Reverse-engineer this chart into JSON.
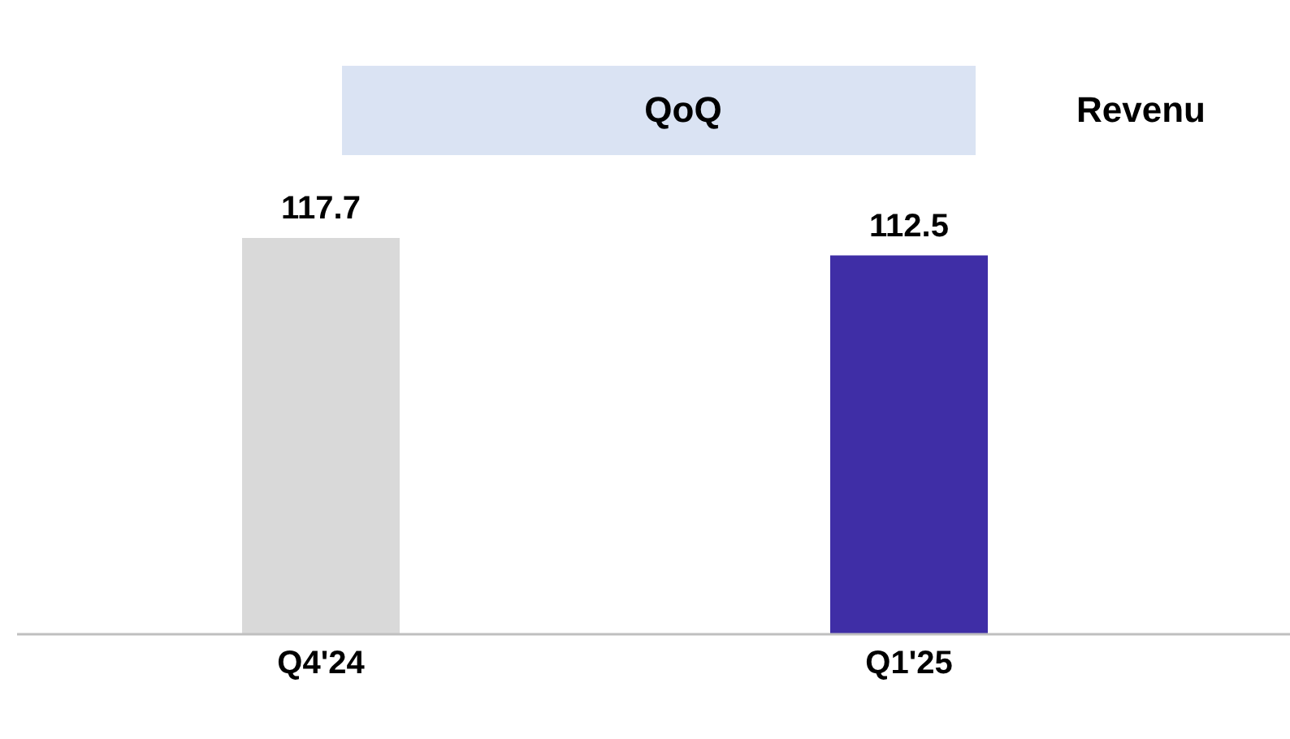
{
  "chart_data": {
    "type": "bar",
    "title": "QoQ",
    "annotations": [
      "Revenu"
    ],
    "categories": [
      "Q4'24",
      "Q1'25"
    ],
    "values": [
      117.7,
      112.5
    ],
    "colors": [
      "#d9d9d9",
      "#3f2ea6"
    ],
    "data_labels": true
  }
}
